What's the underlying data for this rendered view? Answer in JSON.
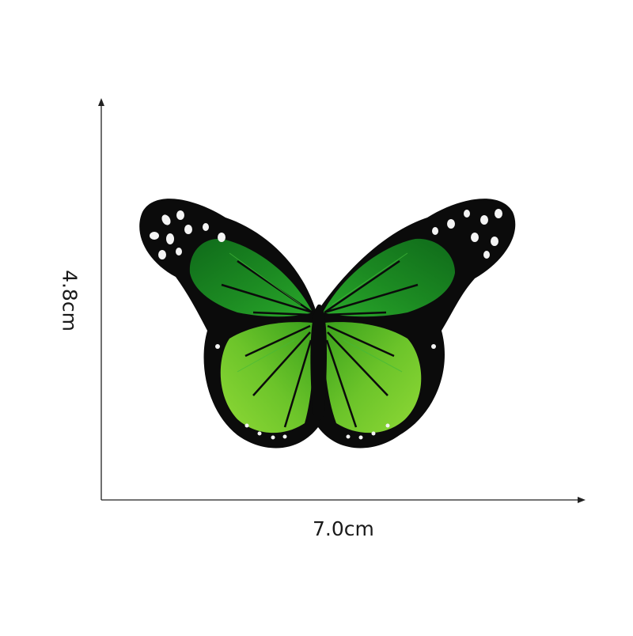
{
  "dimensions": {
    "width_label": "7.0cm",
    "height_label": "4.8cm"
  },
  "product": {
    "icon": "butterfly-embroidered-patch",
    "colors": {
      "border": "#0b0b0b",
      "upper_wing": "#17801f",
      "upper_wing_light": "#2ea22c",
      "lower_wing": "#7fd12a",
      "lower_wing_dark": "#3aa11c",
      "body": "#0b0b0b",
      "spots": "#f4f4f4",
      "axis": "#222222"
    }
  }
}
